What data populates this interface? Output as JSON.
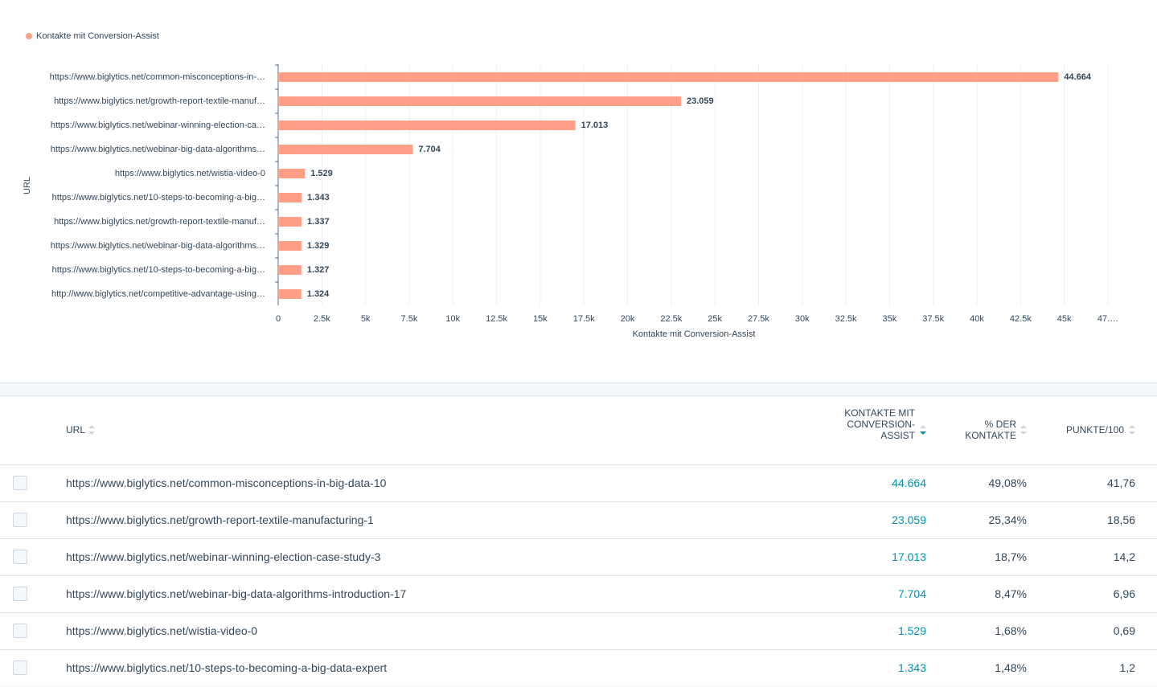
{
  "chart_data": {
    "type": "bar",
    "orientation": "horizontal",
    "legend": "Kontakte mit Conversion-Assist",
    "legend_position": "top-left",
    "ylabel": "URL",
    "xlabel": "Kontakte mit Conversion-Assist",
    "categories": [
      "https://www.biglytics.net/common-misconceptions-in-…",
      "https://www.biglytics.net/growth-report-textile-manuf…",
      "https://www.biglytics.net/webinar-winning-election-ca…",
      "https://www.biglytics.net/webinar-big-data-algorithms…",
      "https://www.biglytics.net/wistia-video-0",
      "https://www.biglytics.net/10-steps-to-becoming-a-big…",
      "https://www.biglytics.net/growth-report-textile-manuf…",
      "https://www.biglytics.net/webinar-big-data-algorithms…",
      "https://www.biglytics.net/10-steps-to-becoming-a-big…",
      "http://www.biglytics.net/competitive-advantage-using…"
    ],
    "values": [
      44664,
      23059,
      17013,
      7704,
      1529,
      1343,
      1337,
      1329,
      1327,
      1324
    ],
    "value_labels": [
      "44.664",
      "23.059",
      "17.013",
      "7.704",
      "1.529",
      "1.343",
      "1.337",
      "1.329",
      "1.327",
      "1.324"
    ],
    "color": "#ff9f87",
    "xlim": [
      0,
      47500
    ],
    "xticks": [
      0,
      {
        "value": 2500,
        "label": "2.5k"
      },
      {
        "value": 5000,
        "label": "5k"
      },
      {
        "value": 7500,
        "label": "7.5k"
      },
      {
        "value": 10000,
        "label": "10k"
      },
      {
        "value": 12500,
        "label": "12.5k"
      },
      {
        "value": 15000,
        "label": "15k"
      },
      {
        "value": 17500,
        "label": "17.5k"
      },
      {
        "value": 20000,
        "label": "20k"
      },
      {
        "value": 22500,
        "label": "22.5k"
      },
      {
        "value": 25000,
        "label": "25k"
      },
      {
        "value": 27500,
        "label": "27.5k"
      },
      {
        "value": 30000,
        "label": "30k"
      },
      {
        "value": 32500,
        "label": "32.5k"
      },
      {
        "value": 35000,
        "label": "35k"
      },
      {
        "value": 37500,
        "label": "37.5k"
      },
      {
        "value": 40000,
        "label": "40k"
      },
      {
        "value": 42500,
        "label": "42.5k"
      },
      {
        "value": 45000,
        "label": "45k"
      },
      {
        "value": 47500,
        "label": "47.…"
      }
    ],
    "grid": true
  },
  "table": {
    "header": [
      "URL",
      "KONTAKTE MIT CONVERSION-ASSIST",
      "% DER KONTAKTE",
      "PUNKTE/100"
    ],
    "rows": [
      [
        "https://www.biglytics.net/common-misconceptions-in-big-data-10",
        "44.664",
        "49,08%",
        "41,76"
      ],
      [
        "https://www.biglytics.net/growth-report-textile-manufacturing-1",
        "23.059",
        "25,34%",
        "18,56"
      ],
      [
        "https://www.biglytics.net/webinar-winning-election-case-study-3",
        "17.013",
        "18,7%",
        "14,2"
      ],
      [
        "https://www.biglytics.net/webinar-big-data-algorithms-introduction-17",
        "7.704",
        "8,47%",
        "6,96"
      ],
      [
        "https://www.biglytics.net/wistia-video-0",
        "1.529",
        "1,68%",
        "0,69"
      ],
      [
        "https://www.biglytics.net/10-steps-to-becoming-a-big-data-expert",
        "1.343",
        "1,48%",
        "1,2"
      ]
    ]
  }
}
